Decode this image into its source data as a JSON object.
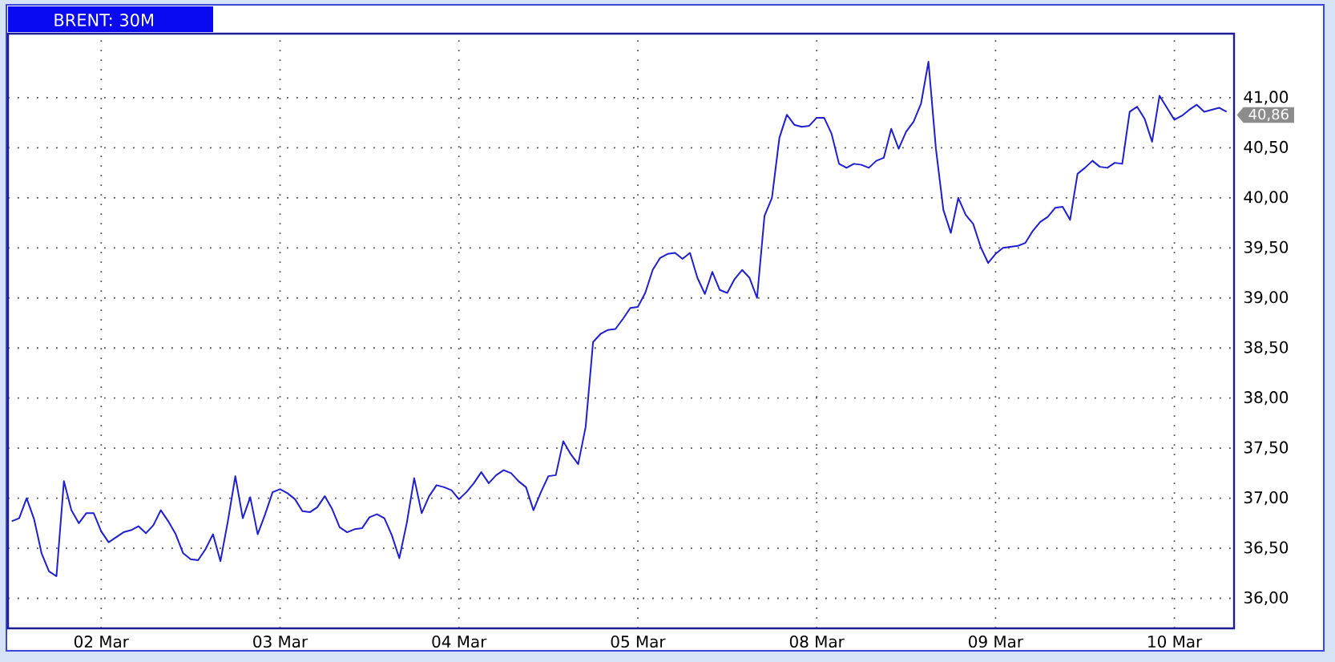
{
  "chart_data": {
    "type": "line",
    "title": "BRENT: 30M",
    "color": "#1e1ed2",
    "categories": [
      null,
      null,
      null,
      null,
      null,
      null,
      null,
      null,
      null,
      null,
      null,
      null,
      "02 Mar",
      null,
      null,
      null,
      null,
      null,
      null,
      null,
      null,
      null,
      null,
      null,
      null,
      null,
      null,
      null,
      null,
      null,
      null,
      null,
      null,
      null,
      null,
      null,
      "03 Mar",
      null,
      null,
      null,
      null,
      null,
      null,
      null,
      null,
      null,
      null,
      null,
      null,
      null,
      null,
      null,
      null,
      null,
      null,
      null,
      null,
      null,
      null,
      null,
      "04 Mar",
      null,
      null,
      null,
      null,
      null,
      null,
      null,
      null,
      null,
      null,
      null,
      null,
      null,
      null,
      null,
      null,
      null,
      null,
      null,
      null,
      null,
      null,
      null,
      "05 Mar",
      null,
      null,
      null,
      null,
      null,
      null,
      null,
      null,
      null,
      null,
      null,
      null,
      null,
      null,
      null,
      null,
      null,
      null,
      null,
      null,
      null,
      null,
      null,
      "08 Mar",
      null,
      null,
      null,
      null,
      null,
      null,
      null,
      null,
      null,
      null,
      null,
      null,
      null,
      null,
      null,
      null,
      null,
      null,
      null,
      null,
      null,
      null,
      null,
      "09 Mar",
      null,
      null,
      null,
      null,
      null,
      null,
      null,
      null,
      null,
      null,
      null,
      null,
      null,
      null,
      null,
      null,
      null,
      null,
      null,
      null,
      null,
      null,
      null,
      "10 Mar",
      null,
      null,
      null,
      null,
      null,
      null,
      null
    ],
    "values": [
      36.77,
      36.8,
      37.0,
      36.79,
      36.45,
      36.27,
      36.22,
      37.17,
      36.88,
      36.75,
      36.85,
      36.85,
      36.67,
      36.56,
      36.61,
      36.66,
      36.68,
      36.72,
      36.65,
      36.73,
      36.88,
      36.77,
      36.64,
      36.45,
      36.39,
      36.38,
      36.49,
      36.64,
      36.37,
      36.77,
      37.22,
      36.8,
      37.01,
      36.64,
      36.84,
      37.06,
      37.09,
      37.05,
      36.99,
      36.87,
      36.86,
      36.91,
      37.02,
      36.89,
      36.71,
      36.66,
      36.69,
      36.7,
      36.81,
      36.84,
      36.8,
      36.63,
      36.4,
      36.75,
      37.2,
      36.85,
      37.02,
      37.13,
      37.11,
      37.08,
      36.99,
      37.06,
      37.15,
      37.26,
      37.15,
      37.23,
      37.28,
      37.25,
      37.17,
      37.11,
      36.88,
      37.06,
      37.22,
      37.23,
      37.57,
      37.44,
      37.34,
      37.71,
      38.56,
      38.64,
      38.68,
      38.69,
      38.79,
      38.9,
      38.91,
      39.05,
      39.28,
      39.4,
      39.44,
      39.45,
      39.39,
      39.45,
      39.2,
      39.04,
      39.26,
      39.08,
      39.05,
      39.19,
      39.28,
      39.2,
      39.0,
      39.82,
      40.0,
      40.6,
      40.83,
      40.73,
      40.71,
      40.72,
      40.8,
      40.8,
      40.64,
      40.34,
      40.3,
      40.34,
      40.33,
      40.3,
      40.37,
      40.4,
      40.69,
      40.49,
      40.66,
      40.76,
      40.94,
      41.36,
      40.49,
      39.88,
      39.65,
      40.0,
      39.83,
      39.74,
      39.51,
      39.35,
      39.44,
      39.5,
      39.51,
      39.52,
      39.55,
      39.67,
      39.76,
      39.81,
      39.9,
      39.91,
      39.78,
      40.24,
      40.3,
      40.37,
      40.31,
      40.3,
      40.35,
      40.34,
      40.86,
      40.91,
      40.79,
      40.56,
      41.02,
      40.9,
      40.78,
      40.82,
      40.88,
      40.93,
      40.86,
      40.88,
      40.9,
      40.86
    ],
    "ylim": [
      35.7,
      41.64
    ],
    "yticks": [
      {
        "value": 36,
        "label": "36,00"
      },
      {
        "value": 36.5,
        "label": "36,50"
      },
      {
        "value": 37,
        "label": "37,00"
      },
      {
        "value": 37.5,
        "label": "37,50"
      },
      {
        "value": 38,
        "label": "38,00"
      },
      {
        "value": 38.5,
        "label": "38,50"
      },
      {
        "value": 39,
        "label": "39,00"
      },
      {
        "value": 39.5,
        "label": "39,50"
      },
      {
        "value": 40,
        "label": "40,00"
      },
      {
        "value": 40.5,
        "label": "40,50"
      },
      {
        "value": 41,
        "label": "41,00"
      }
    ],
    "grid": true,
    "annotations": [
      "40,86"
    ]
  }
}
